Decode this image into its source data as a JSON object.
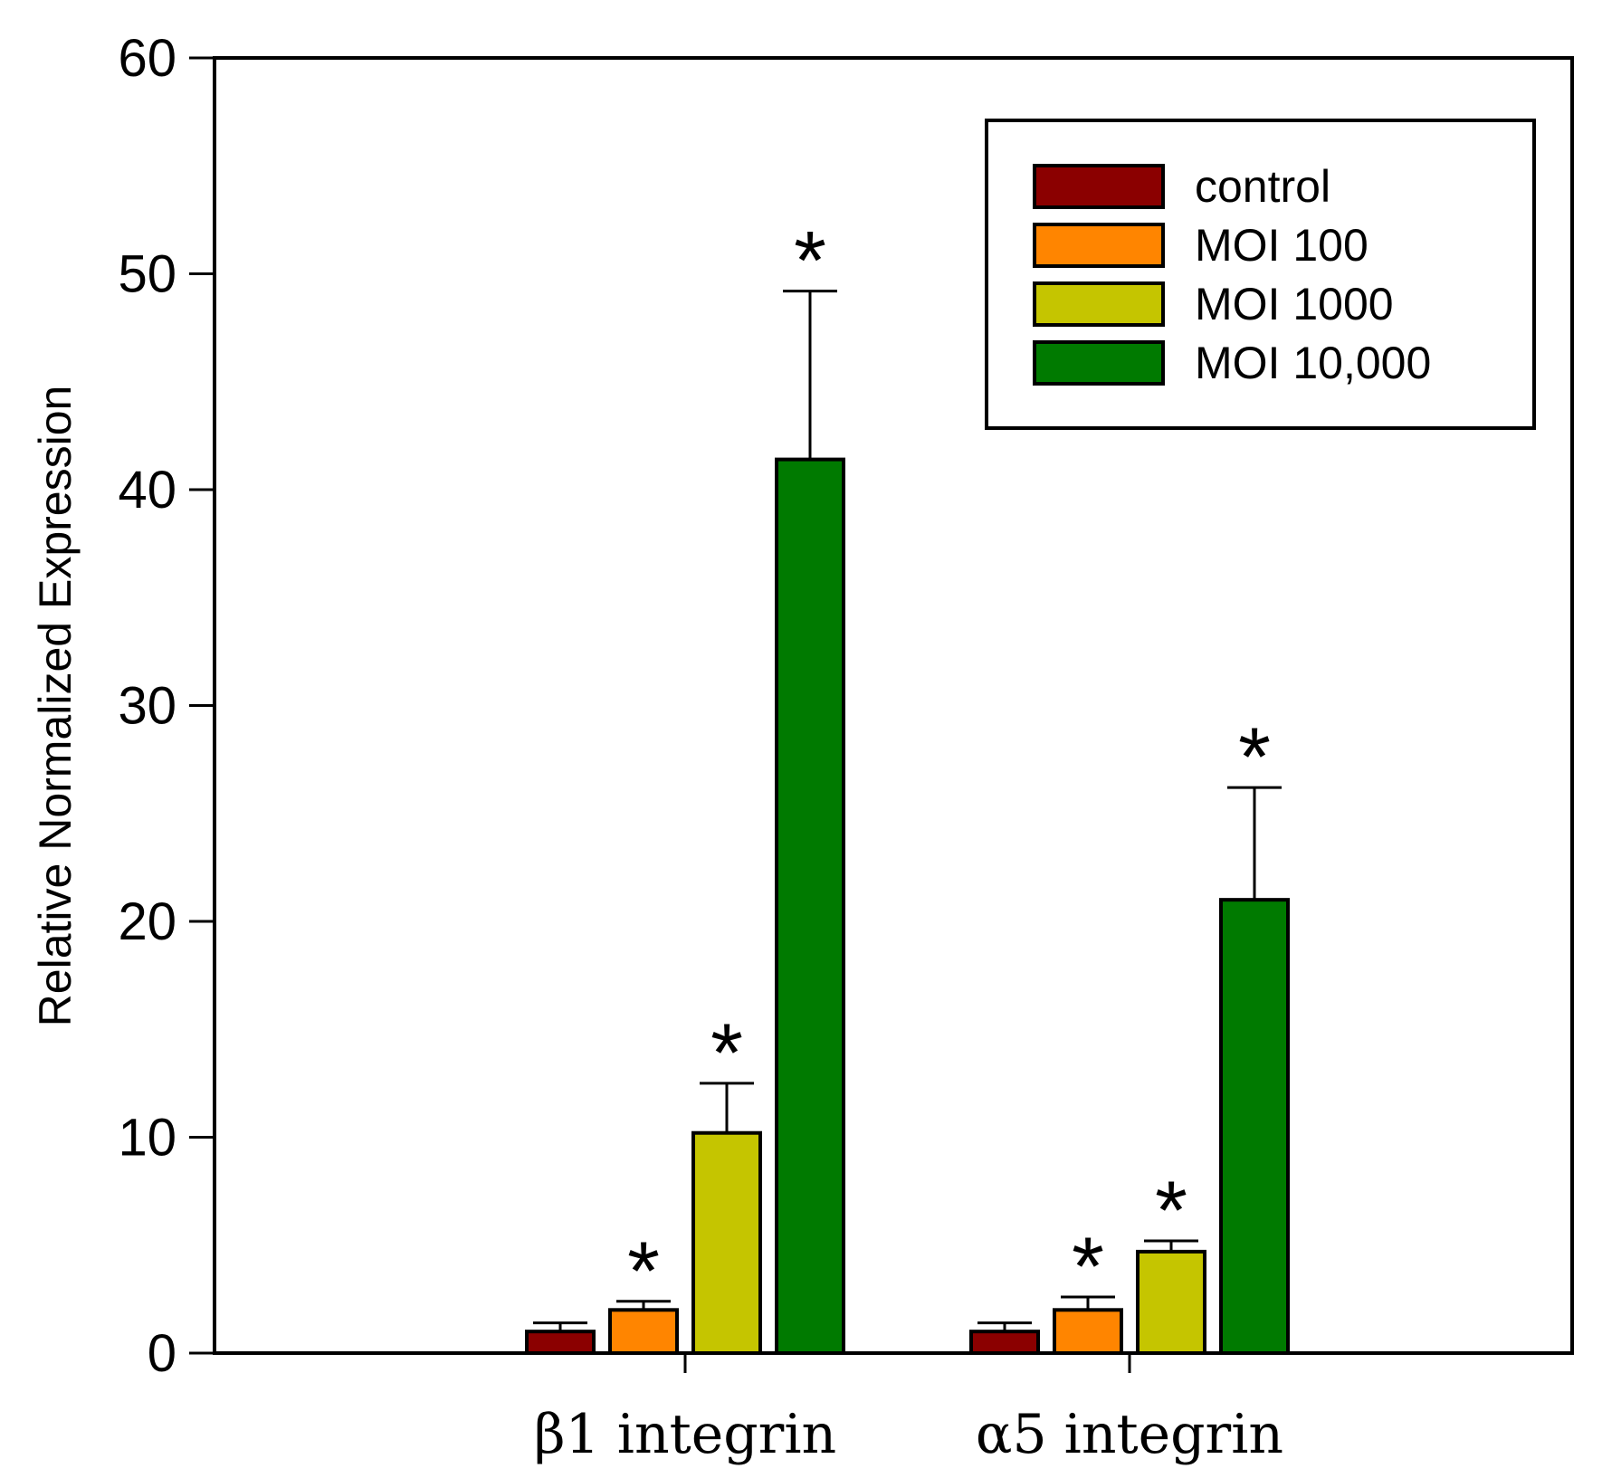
{
  "chart_data": {
    "type": "bar",
    "title": "",
    "xlabel": "",
    "ylabel": "Relative Normalized Expression",
    "ylim": [
      0,
      60
    ],
    "yticks": [
      0,
      10,
      20,
      30,
      40,
      50,
      60
    ],
    "categories": [
      "β1 integrin",
      "α5 integrin"
    ],
    "series": [
      {
        "name": "control",
        "color": "#8b0000",
        "values": [
          1.0,
          1.0
        ],
        "errors": [
          0.4,
          0.4
        ],
        "significant": [
          false,
          false
        ]
      },
      {
        "name": "MOI 100",
        "color": "#ff8500",
        "values": [
          2.0,
          2.0
        ],
        "errors": [
          0.4,
          0.6
        ],
        "significant": [
          true,
          true
        ]
      },
      {
        "name": "MOI 1000",
        "color": "#c5c500",
        "values": [
          10.2,
          4.7
        ],
        "errors": [
          2.3,
          0.5
        ],
        "significant": [
          true,
          true
        ]
      },
      {
        "name": "MOI 10,000",
        "color": "#007a00",
        "values": [
          41.4,
          21.0
        ],
        "errors": [
          7.8,
          5.2
        ],
        "significant": [
          true,
          true
        ]
      }
    ],
    "significance_marker": "*",
    "legend_position": "top-right",
    "grid": false
  }
}
